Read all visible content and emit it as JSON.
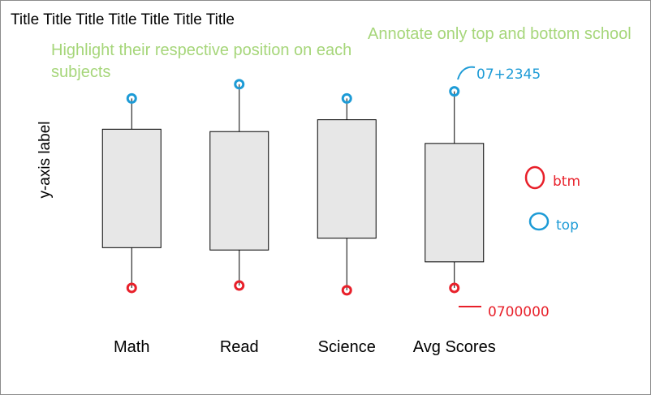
{
  "chart_data": {
    "type": "boxplot",
    "title": "Title Title Title Title Title Title Title",
    "ylabel": "y-axis label",
    "xlabel": "",
    "categories": [
      "Math",
      "Read",
      "Science",
      "Avg Scores"
    ],
    "ylim": [
      0,
      100
    ],
    "boxes": [
      {
        "category": "Math",
        "min": 12,
        "q1": 29,
        "q3": 79,
        "max": 92
      },
      {
        "category": "Read",
        "min": 13,
        "q1": 28,
        "q3": 78,
        "max": 98
      },
      {
        "category": "Science",
        "min": 11,
        "q1": 33,
        "q3": 83,
        "max": 92
      },
      {
        "category": "Avg Scores",
        "min": 12,
        "q1": 23,
        "q3": 73,
        "max": 95
      }
    ],
    "annotations": [
      "Highlight their respective position on each subjects",
      "Annotate only top and bottom school"
    ],
    "handwritten": {
      "top_value": "07+2345",
      "bottom_value": "0700000",
      "legend_btm": "btm",
      "legend_top": "top"
    },
    "colors": {
      "box_fill": "#e7e7e7",
      "box_stroke": "#000000",
      "top_marker": "#1d9bd6",
      "bottom_marker": "#e8202a",
      "note_text": "#a6d67a"
    }
  }
}
